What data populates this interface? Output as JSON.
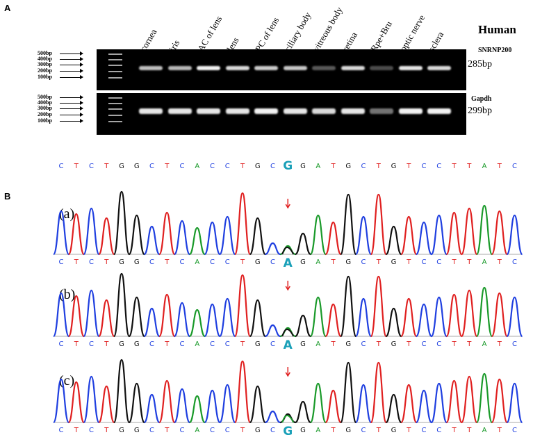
{
  "panels": {
    "a_letter": "A",
    "b_letter": "B"
  },
  "gel": {
    "species": "Human",
    "lanes": [
      "cornea",
      "iris",
      "AC of lens",
      "lens",
      "PC of lens",
      "ciliary body",
      "vitreous body",
      "retina",
      "Rpe+Bru",
      "optic nerve",
      "sclera"
    ],
    "top": {
      "gene": "SNRNP200",
      "size": "285bp",
      "ladder": [
        "500bp",
        "400bp",
        "300bp",
        "200bp",
        "100bp"
      ],
      "band_intensity": [
        0.75,
        0.72,
        0.95,
        0.85,
        0.8,
        0.78,
        0.35,
        0.85,
        0.3,
        0.9,
        0.85
      ]
    },
    "bottom": {
      "gene": "Gapdh",
      "size": "299bp",
      "ladder": [
        "500bp",
        "400bp",
        "300bp",
        "200bp",
        "100bp"
      ],
      "band_intensity": [
        0.9,
        0.9,
        0.9,
        0.9,
        0.95,
        0.9,
        0.85,
        0.9,
        0.45,
        0.95,
        0.95
      ]
    }
  },
  "reference_sequence": [
    "C",
    "T",
    "C",
    "T",
    "G",
    "G",
    "C",
    "T",
    "C",
    "A",
    "C",
    "C",
    "T",
    "G",
    "C",
    "G",
    "G",
    "A",
    "T",
    "G",
    "C",
    "T",
    "G",
    "T",
    "C",
    "C",
    "T",
    "T",
    "A",
    "T",
    "C"
  ],
  "highlight_index": 15,
  "chromatograms": [
    {
      "label": "(a)",
      "variant_base": "A",
      "sequence": [
        "C",
        "T",
        "C",
        "T",
        "G",
        "G",
        "C",
        "T",
        "C",
        "A",
        "C",
        "C",
        "T",
        "G",
        "C",
        "A",
        "G",
        "A",
        "T",
        "G",
        "C",
        "T",
        "G",
        "T",
        "C",
        "C",
        "T",
        "T",
        "A",
        "T",
        "C"
      ]
    },
    {
      "label": "(b)",
      "variant_base": "A",
      "sequence": [
        "C",
        "T",
        "C",
        "T",
        "G",
        "G",
        "C",
        "T",
        "C",
        "A",
        "C",
        "C",
        "T",
        "G",
        "C",
        "A",
        "G",
        "A",
        "T",
        "G",
        "C",
        "T",
        "G",
        "T",
        "C",
        "C",
        "T",
        "T",
        "A",
        "T",
        "C"
      ]
    },
    {
      "label": "(c)",
      "variant_base": "G",
      "sequence": [
        "C",
        "T",
        "C",
        "T",
        "G",
        "G",
        "C",
        "T",
        "C",
        "A",
        "C",
        "C",
        "T",
        "G",
        "C",
        "G",
        "G",
        "A",
        "T",
        "G",
        "C",
        "T",
        "G",
        "T",
        "C",
        "C",
        "T",
        "T",
        "A",
        "T",
        "C"
      ]
    }
  ],
  "colors": {
    "A": "#1a9a2a",
    "C": "#1f3fe0",
    "G": "#111111",
    "T": "#e02020",
    "highlight": "#1aa0b8",
    "arrow": "#e02020"
  }
}
